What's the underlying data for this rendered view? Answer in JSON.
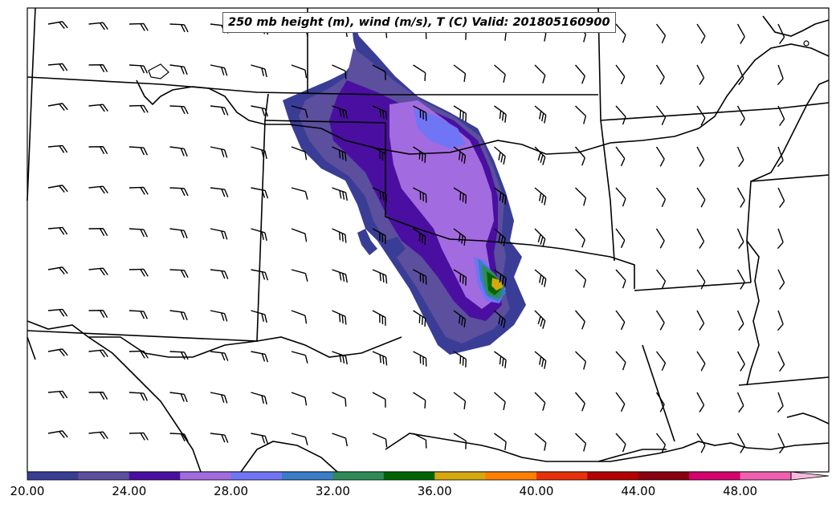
{
  "title": "250 mb height (m), wind (m/s), T (C) Valid: 201805160900",
  "colorbar": {
    "min": 20.0,
    "max": 50.0,
    "step": 2.0,
    "extend": "max",
    "tick_labels": [
      "20.00",
      "24.00",
      "28.00",
      "32.00",
      "36.00",
      "40.00",
      "44.00",
      "48.00"
    ],
    "colors": [
      "#3a3d96",
      "#5b4f9e",
      "#4a0fa0",
      "#a26be0",
      "#7075f5",
      "#3a7cc8",
      "#2e8b57",
      "#006400",
      "#d4a80e",
      "#ff7f00",
      "#e8310a",
      "#b30000",
      "#8b0010",
      "#d6006e",
      "#f060b0"
    ],
    "extend_color": "#f8b8dc"
  },
  "wind_barb_field": "wind (m/s)",
  "shaded_field": "wind speed (m/s)",
  "map_region": "Southern Plains, United States"
}
